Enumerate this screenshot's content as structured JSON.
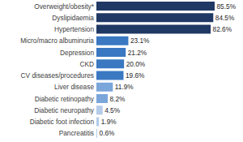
{
  "chart_data": {
    "type": "bar",
    "orientation": "horizontal",
    "data_labels": true,
    "categories": [
      "Overweight/obesity*",
      "Dyslipidaemia",
      "Hypertension",
      "Micro/macro albuminuria",
      "Depression",
      "CKD",
      "CV diseases/procedures",
      "Liver disease",
      "Diabetic retinopathy",
      "Diabetic neuropathy",
      "Diabetic foot infection",
      "Pancreatitis"
    ],
    "values": [
      85.5,
      84.5,
      82.6,
      23.1,
      21.2,
      20.0,
      19.6,
      11.9,
      8.2,
      4.5,
      1.9,
      0.6
    ],
    "value_labels": [
      "85.5%",
      "84.5%",
      "82.6%",
      "23.1%",
      "21.2%",
      "20.0%",
      "19.6%",
      "11.9%",
      "8.2%",
      "4.5%",
      "1.9%",
      "0.6%"
    ],
    "colors": [
      "#203864",
      "#203864",
      "#203864",
      "#3a78c2",
      "#3a78c2",
      "#3a78c2",
      "#3a78c2",
      "#7aa6da",
      "#7aa6da",
      "#b4cbe9",
      "#b4cbe9",
      "#b4cbe9"
    ]
  }
}
